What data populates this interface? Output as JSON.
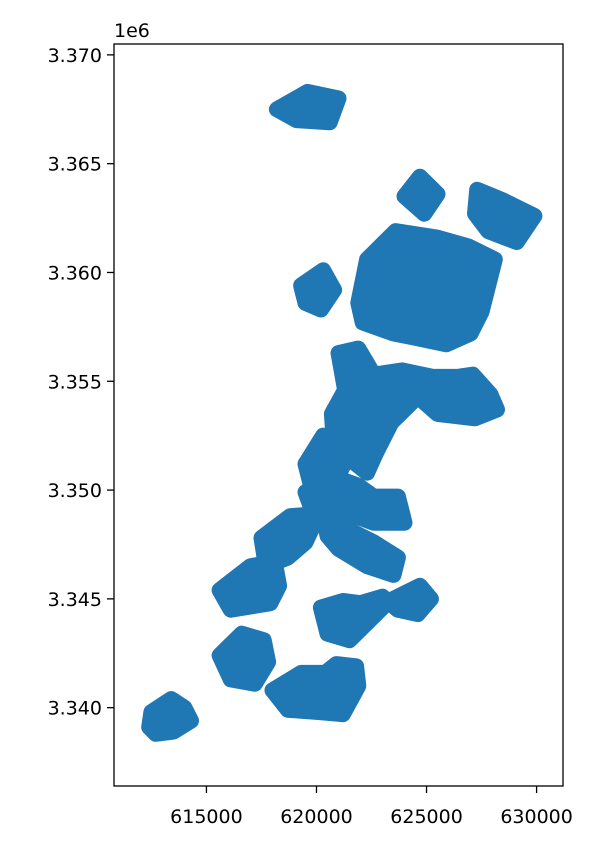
{
  "chart_data": {
    "type": "map",
    "title": "",
    "xlabel": "",
    "ylabel": "",
    "offset_text": "1e6",
    "xlim": [
      610800,
      631200
    ],
    "ylim": [
      3336400,
      3370500
    ],
    "x_ticks": [
      615000,
      620000,
      625000,
      630000
    ],
    "x_tick_labels": [
      "615000",
      "620000",
      "625000",
      "630000"
    ],
    "y_ticks": [
      3340000,
      3345000,
      3350000,
      3355000,
      3360000,
      3365000,
      3370000
    ],
    "y_tick_labels": [
      "3.340",
      "3.345",
      "3.350",
      "3.355",
      "3.360",
      "3.365",
      "3.370"
    ],
    "grid": false,
    "fill_color": "#1f77b4",
    "polygons": [
      [
        [
          618200,
          3367500
        ],
        [
          619600,
          3368300
        ],
        [
          621000,
          3368000
        ],
        [
          620600,
          3366900
        ],
        [
          619100,
          3367000
        ]
      ],
      [
        [
          624000,
          3363500
        ],
        [
          624700,
          3364400
        ],
        [
          625500,
          3363600
        ],
        [
          624900,
          3362700
        ]
      ],
      [
        [
          627300,
          3363800
        ],
        [
          628500,
          3363300
        ],
        [
          629900,
          3362600
        ],
        [
          629100,
          3361400
        ],
        [
          627800,
          3361900
        ],
        [
          627200,
          3362700
        ]
      ],
      [
        [
          619300,
          3359400
        ],
        [
          620300,
          3360100
        ],
        [
          620800,
          3359200
        ],
        [
          620200,
          3358300
        ],
        [
          619500,
          3358600
        ]
      ],
      [
        [
          622300,
          3360600
        ],
        [
          623600,
          3361900
        ],
        [
          625500,
          3361600
        ],
        [
          626900,
          3361200
        ],
        [
          628100,
          3360600
        ],
        [
          627500,
          3358200
        ],
        [
          627000,
          3357200
        ],
        [
          625900,
          3356700
        ],
        [
          624500,
          3357000
        ],
        [
          623500,
          3357200
        ],
        [
          622100,
          3357700
        ],
        [
          621900,
          3358600
        ]
      ],
      [
        [
          621000,
          3356300
        ],
        [
          621900,
          3356500
        ],
        [
          622600,
          3355300
        ],
        [
          623900,
          3355500
        ],
        [
          625300,
          3355200
        ],
        [
          626400,
          3355200
        ],
        [
          627100,
          3355300
        ],
        [
          627900,
          3354400
        ],
        [
          628200,
          3353700
        ],
        [
          627200,
          3353300
        ],
        [
          625500,
          3353500
        ],
        [
          624600,
          3354300
        ],
        [
          623400,
          3353100
        ],
        [
          622700,
          3351700
        ],
        [
          622300,
          3350800
        ],
        [
          620800,
          3352000
        ],
        [
          620700,
          3353500
        ],
        [
          621300,
          3354600
        ]
      ],
      [
        [
          619500,
          3351200
        ],
        [
          620300,
          3352500
        ],
        [
          621300,
          3351300
        ],
        [
          620800,
          3350300
        ],
        [
          619800,
          3350000
        ]
      ],
      [
        [
          619500,
          3349900
        ],
        [
          620800,
          3350600
        ],
        [
          621900,
          3350200
        ],
        [
          622600,
          3349700
        ],
        [
          623700,
          3349700
        ],
        [
          624000,
          3348500
        ],
        [
          622600,
          3348500
        ],
        [
          621800,
          3348800
        ],
        [
          620600,
          3348600
        ],
        [
          619900,
          3348800
        ]
      ],
      [
        [
          620400,
          3348400
        ],
        [
          621400,
          3348200
        ],
        [
          622600,
          3347600
        ],
        [
          623700,
          3346900
        ],
        [
          623500,
          3346100
        ],
        [
          622300,
          3346500
        ],
        [
          621000,
          3347300
        ],
        [
          620500,
          3347900
        ]
      ],
      [
        [
          617500,
          3347800
        ],
        [
          618800,
          3348800
        ],
        [
          620100,
          3348900
        ],
        [
          619500,
          3347600
        ],
        [
          618700,
          3346900
        ],
        [
          617700,
          3346500
        ]
      ],
      [
        [
          615600,
          3345400
        ],
        [
          617000,
          3346500
        ],
        [
          618100,
          3346700
        ],
        [
          618300,
          3345600
        ],
        [
          617900,
          3344800
        ],
        [
          616100,
          3344500
        ]
      ],
      [
        [
          620200,
          3344600
        ],
        [
          620500,
          3343400
        ],
        [
          621500,
          3343100
        ],
        [
          622000,
          3343600
        ],
        [
          622700,
          3344300
        ],
        [
          623300,
          3344900
        ],
        [
          624700,
          3345600
        ],
        [
          625200,
          3345000
        ],
        [
          624600,
          3344300
        ],
        [
          623700,
          3344500
        ],
        [
          623000,
          3345100
        ],
        [
          622000,
          3344800
        ],
        [
          621200,
          3344900
        ]
      ],
      [
        [
          615600,
          3342400
        ],
        [
          616600,
          3343400
        ],
        [
          617600,
          3343100
        ],
        [
          617800,
          3342100
        ],
        [
          617200,
          3341100
        ],
        [
          616100,
          3341300
        ]
      ],
      [
        [
          618000,
          3340800
        ],
        [
          619300,
          3341600
        ],
        [
          620400,
          3341600
        ],
        [
          620900,
          3342000
        ],
        [
          621800,
          3341900
        ],
        [
          621900,
          3341000
        ],
        [
          621200,
          3339700
        ],
        [
          620100,
          3339800
        ],
        [
          618700,
          3339900
        ]
      ],
      [
        [
          612400,
          3339100
        ],
        [
          612500,
          3339800
        ],
        [
          613400,
          3340400
        ],
        [
          614000,
          3340000
        ],
        [
          614300,
          3339400
        ],
        [
          613500,
          3338900
        ],
        [
          612700,
          3338800
        ]
      ]
    ]
  }
}
